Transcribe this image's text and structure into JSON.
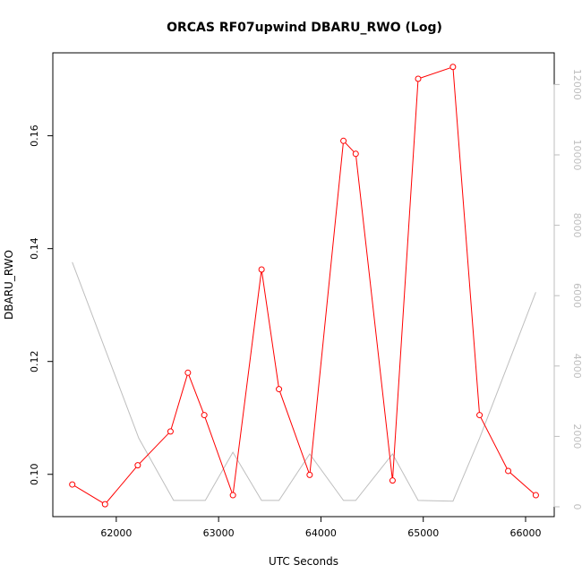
{
  "chart_data": {
    "type": "line",
    "title": "ORCAS RF07upwind DBARU_RWO (Log)",
    "xlabel": "UTC Seconds",
    "ylabel": "DBARU_RWO",
    "y2label": "",
    "xlim": [
      61380,
      66280
    ],
    "ylim": [
      0.0925,
      0.1747
    ],
    "y2lim": [
      -280,
      12900
    ],
    "x_ticks": [
      62000,
      63000,
      64000,
      65000,
      66000
    ],
    "y_ticks": [
      0.1,
      0.12,
      0.14,
      0.16
    ],
    "y2_ticks": [
      0,
      2000,
      4000,
      6000,
      8000,
      10000,
      12000
    ],
    "x_tick_labels": [
      "62000",
      "63000",
      "64000",
      "65000",
      "66000"
    ],
    "y_tick_labels": [
      "0.10",
      "0.12",
      "0.14",
      "0.16"
    ],
    "y2_tick_labels": [
      "0",
      "2000",
      "4000",
      "6000",
      "8000",
      "10000",
      "12000"
    ],
    "colors": {
      "primary": "#ff0000",
      "secondary": "#bebebe",
      "axis": "#000000"
    },
    "series": [
      {
        "axis": "left",
        "style": "line+markers",
        "color": "#ff0000",
        "x": [
          61570,
          61890,
          62210,
          62530,
          62700,
          62860,
          63140,
          63420,
          63590,
          63890,
          64220,
          64340,
          64700,
          64950,
          65290,
          65550,
          65830,
          66100
        ],
        "y": [
          0.0982,
          0.0947,
          0.1016,
          0.1076,
          0.118,
          0.1105,
          0.0963,
          0.1363,
          0.1151,
          0.0999,
          0.1591,
          0.1568,
          0.0989,
          0.1701,
          0.1722,
          0.1105,
          0.1006,
          0.0963
        ]
      },
      {
        "axis": "right",
        "style": "line",
        "color": "#bebebe",
        "x": [
          61570,
          62220,
          62560,
          62870,
          63140,
          63420,
          63590,
          63890,
          64220,
          64340,
          64700,
          64950,
          65290,
          65550,
          66100
        ],
        "y": [
          6950,
          1950,
          180,
          180,
          1550,
          180,
          180,
          1500,
          180,
          180,
          1500,
          180,
          160,
          1950,
          6100
        ]
      }
    ]
  }
}
